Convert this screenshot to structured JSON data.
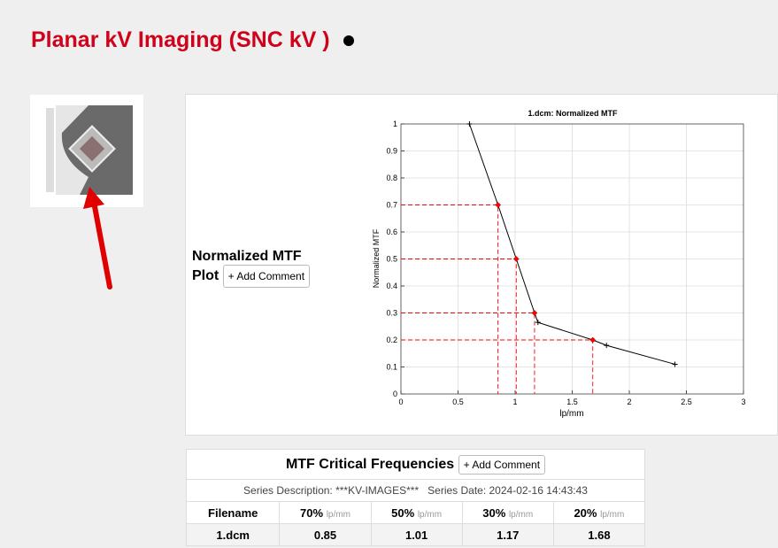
{
  "header": {
    "title": "Planar kV Imaging (SNC kV )"
  },
  "plot_section": {
    "label": "Normalized MTF Plot",
    "button": "+ Add Comment"
  },
  "chart_data": {
    "type": "line",
    "title": "1.dcm: Normalized MTF",
    "x_label": "lp/mm",
    "y_label": "Normalized MTF",
    "x": [
      0.6,
      0.85,
      1.01,
      1.17,
      1.2,
      1.68,
      1.8,
      2.4
    ],
    "values": [
      1,
      0.7,
      0.5,
      0.3,
      0.265,
      0.2,
      0.18,
      0.11
    ],
    "color": "#000000",
    "critical_points": {
      "x": [
        0.85,
        1.01,
        1.17,
        1.68
      ],
      "values": [
        0.7,
        0.5,
        0.3,
        0.2
      ],
      "color": "#ff0000"
    },
    "xlim": [
      0,
      3
    ],
    "xticks": [
      0,
      0.5,
      1,
      1.5,
      2,
      2.5,
      3
    ],
    "ylim": [
      0,
      1
    ],
    "yticks": [
      0,
      0.1,
      0.2,
      0.3,
      0.4,
      0.5,
      0.6,
      0.7,
      0.8,
      0.9,
      1
    ],
    "grid": true
  },
  "table": {
    "title": "MTF Critical Frequencies",
    "button": "+ Add Comment",
    "series_description": "Series Description: ***KV-IMAGES***",
    "series_date": "Series Date: 2024-02-16 14:43:43",
    "columns": [
      {
        "label": "Filename"
      },
      {
        "label": "70%",
        "unit": "lp/mm"
      },
      {
        "label": "50%",
        "unit": "lp/mm"
      },
      {
        "label": "30%",
        "unit": "lp/mm"
      },
      {
        "label": "20%",
        "unit": "lp/mm"
      }
    ],
    "rows": [
      [
        "1.dcm",
        "0.85",
        "1.01",
        "1.17",
        "1.68"
      ]
    ]
  }
}
